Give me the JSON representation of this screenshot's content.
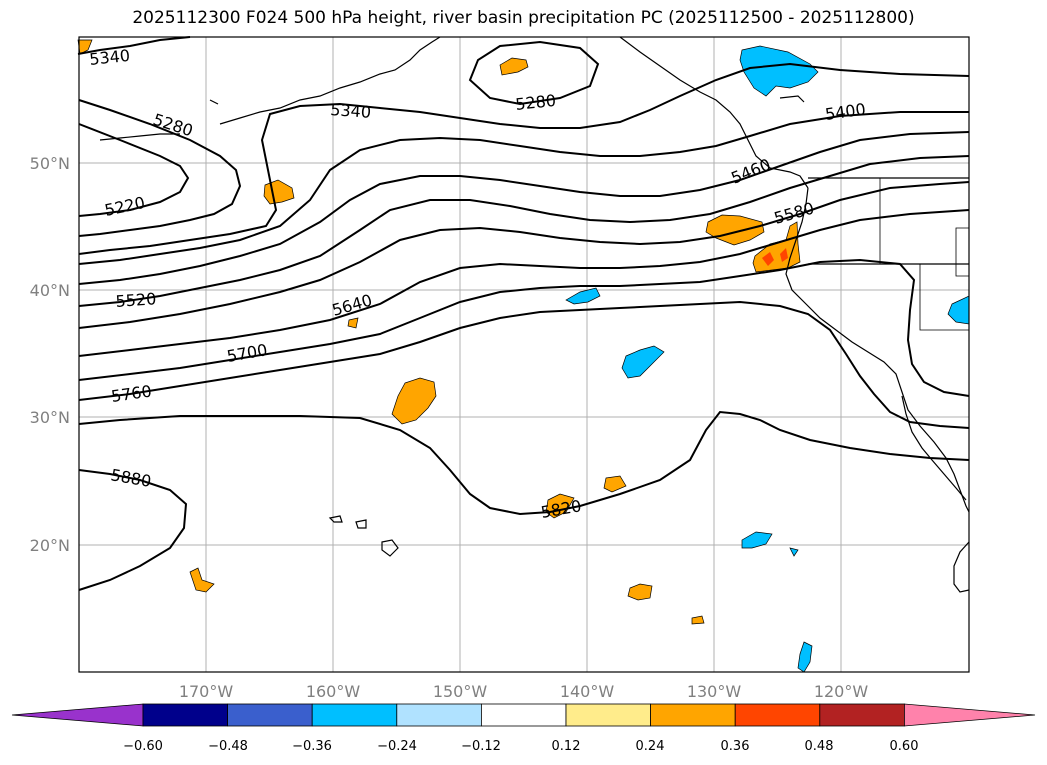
{
  "title": "2025112300 F024 500 hPa height, river basin precipitation PC (2025112500 - 2025112800)",
  "lat_ticks": [
    "50°N",
    "40°N",
    "30°N",
    "20°N"
  ],
  "lon_ticks": [
    "170°W",
    "160°W",
    "150°W",
    "140°W",
    "130°W",
    "120°W"
  ],
  "contour_labels": [
    "5340",
    "5280",
    "5340",
    "5280",
    "5220",
    "5400",
    "5460",
    "5580",
    "5520",
    "5640",
    "5700",
    "5760",
    "5880",
    "5820"
  ],
  "colorbar": {
    "labels": [
      "−0.60",
      "−0.48",
      "−0.36",
      "−0.24",
      "−0.12",
      "0.12",
      "0.24",
      "0.36",
      "0.48",
      "0.60"
    ],
    "colors": [
      "#9932cc",
      "#00008b",
      "#3a5fcd",
      "#00bfff",
      "#b0e2ff",
      "#ffffff",
      "#ffec8b",
      "#ffa500",
      "#ff4500",
      "#b22222",
      "#ff82ab"
    ]
  },
  "map_extent": {
    "lon": [
      -180,
      -110
    ],
    "lat": [
      10,
      60
    ]
  },
  "colors": {
    "positive_precip": "#ffa500",
    "negative_precip": "#00bfff",
    "strong_positive": "#ff4500",
    "grid": "#b0b0b0"
  }
}
